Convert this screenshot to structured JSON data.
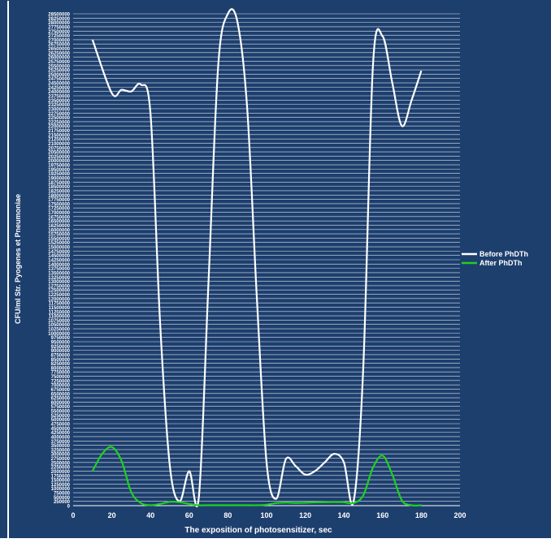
{
  "chart_data": {
    "type": "line",
    "xlabel": "The exposition of photosensitizer, sec",
    "ylabel": "CFU/ml Str. Pyogenes et Pneumoniae",
    "xlim": [
      0,
      200
    ],
    "ylim": [
      0,
      28500000
    ],
    "x_ticks": [
      0,
      20,
      40,
      60,
      80,
      100,
      120,
      140,
      160,
      180,
      200
    ],
    "y_tick_step": 250000,
    "grid": true,
    "legend_position": "right",
    "background": "#1d3f6e",
    "series": [
      {
        "name": "Before PhDTh",
        "color": "#ffffff",
        "x": [
          10,
          20,
          25,
          30,
          35,
          40,
          45,
          50,
          55,
          60,
          65,
          70,
          75,
          80,
          85,
          90,
          95,
          100,
          105,
          110,
          115,
          120,
          125,
          130,
          135,
          140,
          145,
          150,
          155,
          160,
          165,
          170,
          175,
          180
        ],
        "values": [
          27000000,
          23900000,
          24100000,
          24000000,
          24400000,
          22700000,
          10500000,
          2300000,
          250000,
          2000000,
          500000,
          13000000,
          25500000,
          28500000,
          28000000,
          23000000,
          12000000,
          2500000,
          400000,
          2700000,
          2300000,
          1800000,
          2000000,
          2500000,
          3000000,
          2500000,
          250000,
          8000000,
          25500000,
          27200000,
          24500000,
          22000000,
          23500000,
          25200000
        ]
      },
      {
        "name": "After PhDTh",
        "color": "#1fd01f",
        "x": [
          10,
          15,
          20,
          25,
          30,
          35,
          40,
          45,
          50,
          55,
          60,
          65,
          70,
          75,
          80,
          85,
          90,
          95,
          100,
          105,
          110,
          115,
          120,
          125,
          130,
          135,
          140,
          145,
          150,
          155,
          160,
          165,
          170,
          175,
          180
        ],
        "values": [
          2000000,
          3000000,
          3400000,
          2600000,
          800000,
          150000,
          0,
          100000,
          220000,
          200000,
          100000,
          0,
          0,
          0,
          0,
          0,
          0,
          0,
          50000,
          150000,
          180000,
          160000,
          170000,
          190000,
          200000,
          210000,
          200000,
          150000,
          600000,
          2200000,
          2900000,
          1800000,
          300000,
          0,
          0
        ]
      }
    ]
  }
}
